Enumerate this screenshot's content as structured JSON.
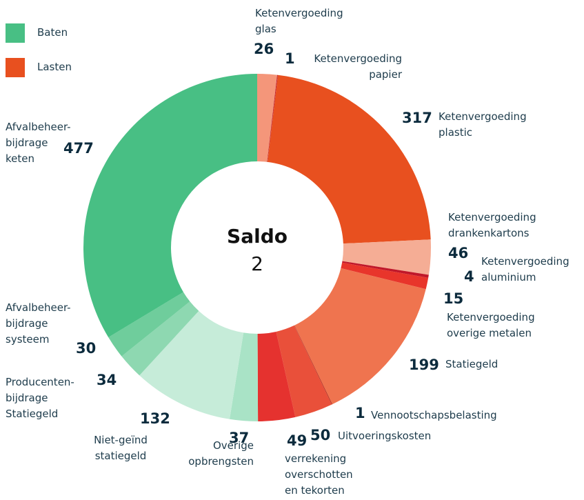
{
  "chart_data": {
    "type": "donut",
    "legend": [
      {
        "name": "Baten",
        "color": "#48bf84"
      },
      {
        "name": "Lasten",
        "color": "#e8501f"
      }
    ],
    "center_label": "Saldo",
    "center_value": 2,
    "categories": [
      "Ketenvergoeding\nglas",
      "Ketenvergoeding\npapier",
      "Ketenvergoeding\nplastic",
      "Ketenvergoeding\ndrankenkartons",
      "Ketenvergoeding\naluminium",
      "Ketenvergoeding\noverige metalen",
      "Statiegeld",
      "Vennootschapsbelasting",
      "Uitvoeringskosten",
      "verrekening\noverschotten\nen tekorten",
      "Overige\nopbrengsten",
      "Niet-geïnd\nstatiegeld",
      "Producenten-\nbijdrage\nStatiegeld",
      "Afvalbeheer-\nbijdrage\nsysteem",
      "Afvalbeheer-\nbijdrage\nketen"
    ],
    "values": [
      26,
      1,
      317,
      46,
      4,
      15,
      199,
      1,
      50,
      49,
      37,
      132,
      34,
      30,
      477
    ],
    "colors": [
      "#f4967a",
      "#c0212d",
      "#e8501f",
      "#f5ad95",
      "#c0182a",
      "#e8352b",
      "#ef744f",
      "#b8301f",
      "#e9503a",
      "#e5322f",
      "#a9e3c6",
      "#c6ecd9",
      "#8ed8b1",
      "#6fcd9c",
      "#48bf84"
    ]
  }
}
